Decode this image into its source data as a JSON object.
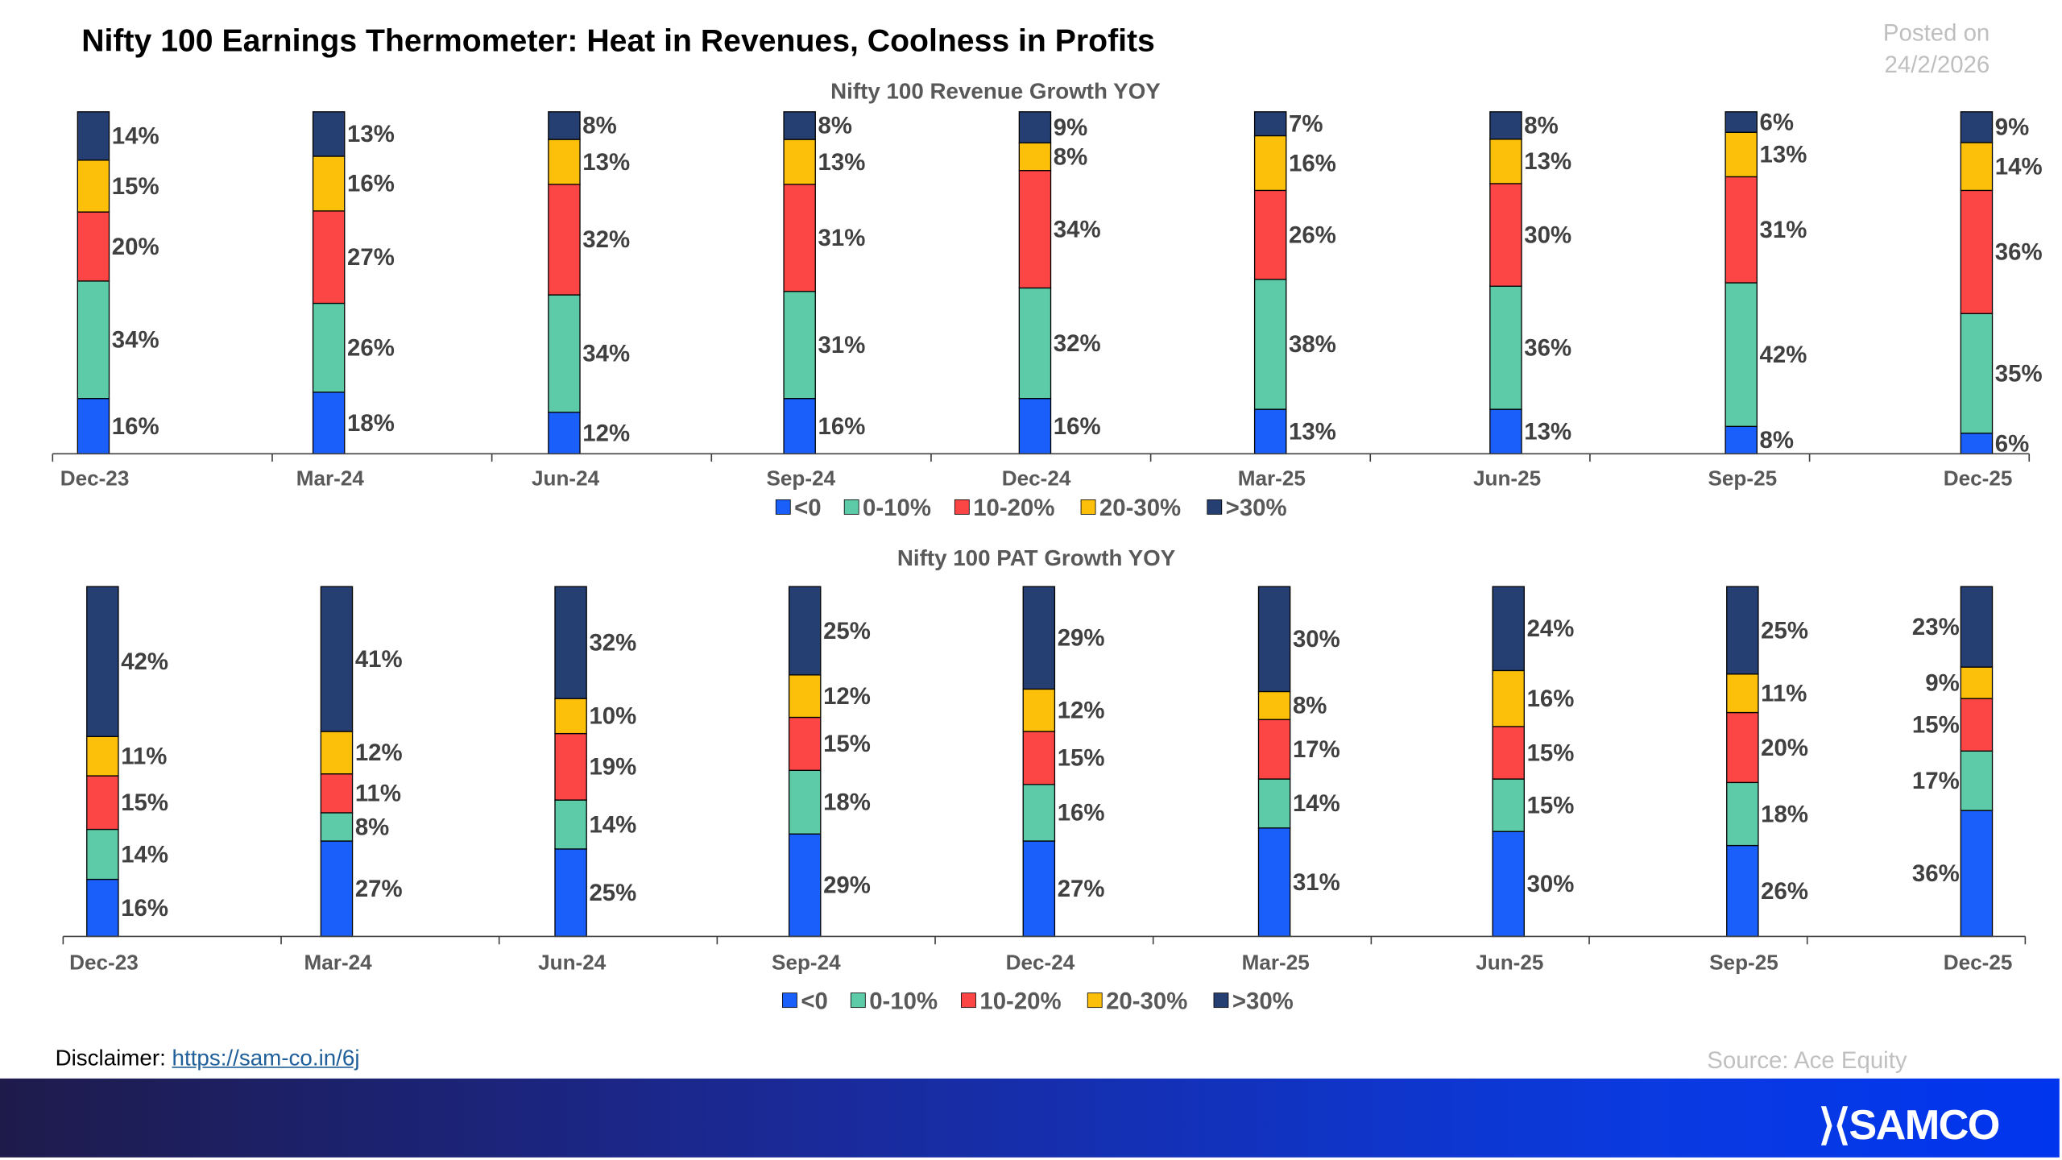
{
  "header": {
    "title": "Nifty 100 Earnings Thermometer: Heat in Revenues, Coolness in Profits",
    "posted_label": "Posted on",
    "posted_date": "24/2/2026"
  },
  "legend": [
    "<0",
    "0-10%",
    "10-20%",
    "20-30%",
    ">30%"
  ],
  "colors": {
    "<0": "#1a5ffa",
    "0-10%": "#5ecba8",
    "10-20%": "#fc4646",
    "20-30%": "#fdc00a",
    ">30%": "#253f72"
  },
  "chart_data": [
    {
      "type": "bar",
      "stacked": true,
      "title": "Nifty 100 Revenue Growth YOY",
      "categories": [
        "Dec-23",
        "Mar-24",
        "Jun-24",
        "Sep-24",
        "Dec-24",
        "Mar-25",
        "Jun-25",
        "Sep-25",
        "Dec-25"
      ],
      "legend_position": "bottom",
      "grid": false,
      "series": [
        {
          "name": "<0",
          "values": [
            16,
            18,
            12,
            16,
            16,
            13,
            13,
            8,
            6
          ]
        },
        {
          "name": "0-10%",
          "values": [
            34,
            26,
            34,
            31,
            32,
            38,
            36,
            42,
            35
          ]
        },
        {
          "name": "10-20%",
          "values": [
            20,
            27,
            32,
            31,
            34,
            26,
            30,
            31,
            36
          ]
        },
        {
          "name": "20-30%",
          "values": [
            15,
            16,
            13,
            13,
            8,
            16,
            13,
            13,
            14
          ]
        },
        {
          "name": ">30%",
          "values": [
            14,
            13,
            8,
            8,
            9,
            7,
            8,
            6,
            9
          ]
        }
      ]
    },
    {
      "type": "bar",
      "stacked": true,
      "title": "Nifty 100 PAT Growth YOY",
      "categories": [
        "Dec-23",
        "Mar-24",
        "Jun-24",
        "Sep-24",
        "Dec-24",
        "Mar-25",
        "Jun-25",
        "Sep-25",
        "Dec-25"
      ],
      "legend_position": "bottom",
      "grid": false,
      "series": [
        {
          "name": "<0",
          "values": [
            16,
            27,
            25,
            29,
            27,
            31,
            30,
            26,
            36
          ]
        },
        {
          "name": "0-10%",
          "values": [
            14,
            8,
            14,
            18,
            16,
            14,
            15,
            18,
            17
          ]
        },
        {
          "name": "10-20%",
          "values": [
            15,
            11,
            19,
            15,
            15,
            17,
            15,
            20,
            15
          ]
        },
        {
          "name": "20-30%",
          "values": [
            11,
            12,
            10,
            12,
            12,
            8,
            16,
            11,
            9
          ]
        },
        {
          "name": ">30%",
          "values": [
            42,
            41,
            32,
            25,
            29,
            30,
            24,
            25,
            23
          ]
        }
      ]
    }
  ],
  "footer": {
    "disclaimer_label": "Disclaimer:",
    "disclaimer_link": "https://sam-co.in/6j",
    "source": "Source: Ace Equity",
    "logo": "SAMCO"
  }
}
